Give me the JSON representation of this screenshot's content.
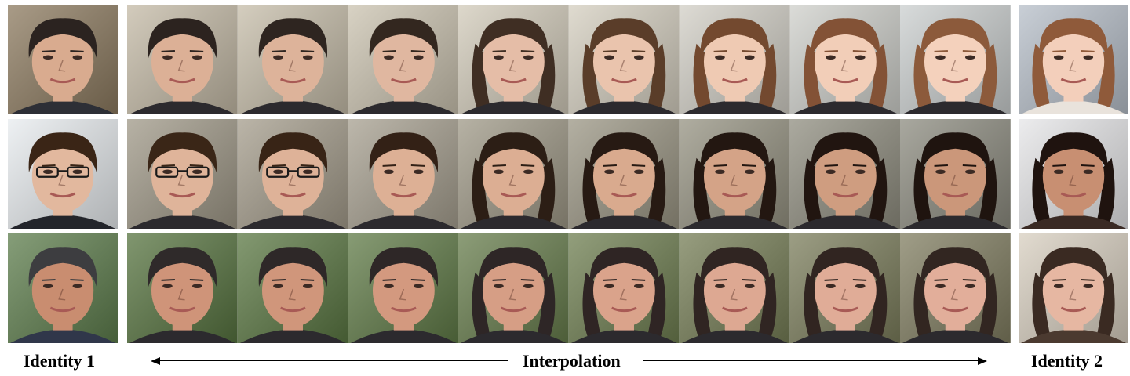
{
  "labels": {
    "identity1": "Identity 1",
    "interpolation": "Interpolation",
    "identity2": "Identity 2"
  },
  "rows": [
    {
      "name": "row-1",
      "background": "#cfc6b2",
      "identity1": {
        "skin": "#d9ab8f",
        "hair": "#2b2320",
        "bg": "#8c7a5f",
        "clothes": "#2d2f36"
      },
      "steps": [
        {
          "skin": "#dcb096",
          "hair": "#2c231f",
          "bg": "#c4baa6"
        },
        {
          "skin": "#ddb39a",
          "hair": "#2e2520",
          "bg": "#c6bda9"
        },
        {
          "skin": "#e0b7a0",
          "hair": "#33271f",
          "bg": "#cbc3b0"
        },
        {
          "skin": "#e5bda7",
          "hair": "#3f2e23",
          "bg": "#d2cbba"
        },
        {
          "skin": "#eac4ad",
          "hair": "#5a3d29",
          "bg": "#d5cfc0"
        },
        {
          "skin": "#efcab3",
          "hair": "#73492f",
          "bg": "#d2cfc6"
        },
        {
          "skin": "#f2ceb8",
          "hair": "#835236",
          "bg": "#cfd0cb"
        },
        {
          "skin": "#f4d1bc",
          "hair": "#8c5a3b",
          "bg": "#cbcfcf"
        }
      ],
      "identity2": {
        "skin": "#f3cfbb",
        "hair": "#8f5a3a",
        "bg": "#b7bfc9",
        "clothes": "#e9e3dc"
      }
    },
    {
      "name": "row-2",
      "background": "#a69e8e",
      "identity1": {
        "skin": "#e2b89e",
        "hair": "#3a2516",
        "bg": "#e8ecef",
        "clothes": "#23252b",
        "glasses": true
      },
      "steps": [
        {
          "skin": "#dfb49a",
          "hair": "#3a2617",
          "bg": "#9f9887",
          "glasses": true
        },
        {
          "skin": "#deb298",
          "hair": "#382416",
          "bg": "#a49c8b",
          "glasses": true
        },
        {
          "skin": "#ddb095",
          "hair": "#332116",
          "bg": "#a69f8f"
        },
        {
          "skin": "#dcae93",
          "hair": "#2c1e15",
          "bg": "#9e9886"
        },
        {
          "skin": "#d9aa8e",
          "hair": "#271a13",
          "bg": "#9a9583"
        },
        {
          "skin": "#d4a387",
          "hair": "#231711",
          "bg": "#959281"
        },
        {
          "skin": "#cf9d80",
          "hair": "#211510",
          "bg": "#8f8d7f"
        },
        {
          "skin": "#cb977a",
          "hair": "#1f140f",
          "bg": "#8c8b7f"
        }
      ],
      "identity2": {
        "skin": "#c88f72",
        "hair": "#1f130f",
        "bg": "#e6e6e8",
        "clothes": "#3a2a24"
      }
    },
    {
      "name": "row-3",
      "background": "#6b7a55",
      "identity1": {
        "skin": "#c98d70",
        "hair": "#3d3d40",
        "bg": "#5d7d4c",
        "clothes": "#30374a"
      },
      "steps": [
        {
          "skin": "#cf9479",
          "hair": "#2f2a2a",
          "bg": "#56733f"
        },
        {
          "skin": "#d0967b",
          "hair": "#2e2828",
          "bg": "#5a7742"
        },
        {
          "skin": "#d3997f",
          "hair": "#2e2727",
          "bg": "#5f7a46"
        },
        {
          "skin": "#d69e85",
          "hair": "#2e2626",
          "bg": "#667c4b"
        },
        {
          "skin": "#daa38b",
          "hair": "#2f2524",
          "bg": "#6e7e50"
        },
        {
          "skin": "#dda892",
          "hair": "#302522",
          "bg": "#757d55"
        },
        {
          "skin": "#e0ac97",
          "hair": "#312521",
          "bg": "#7b7d5b"
        },
        {
          "skin": "#e2ae9a",
          "hair": "#322621",
          "bg": "#807d60"
        }
      ],
      "identity2": {
        "skin": "#e6b7a2",
        "hair": "#3a2a22",
        "bg": "#d8cfc0",
        "clothes": "#4b3a30"
      }
    }
  ]
}
